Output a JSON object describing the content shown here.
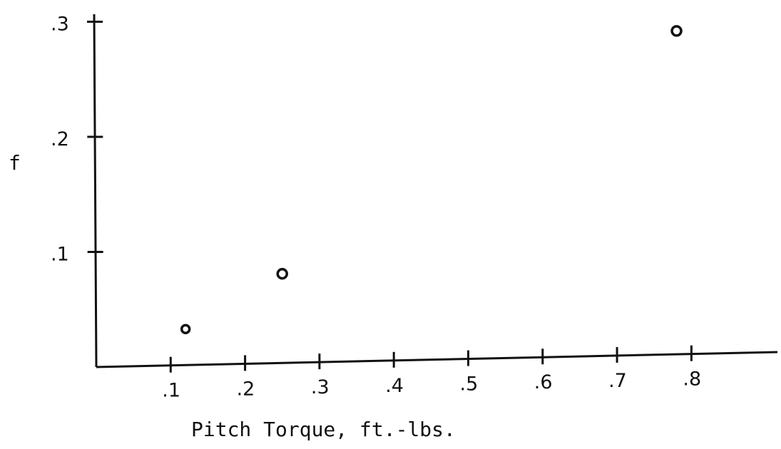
{
  "chart_data": {
    "type": "scatter",
    "title": "",
    "xlabel": "Pitch Torque, ft.-lbs.",
    "ylabel": "f",
    "xlim": [
      0,
      0.9
    ],
    "ylim": [
      0,
      0.3
    ],
    "xticks": [
      0.1,
      0.2,
      0.3,
      0.4,
      0.5,
      0.6,
      0.7,
      0.8
    ],
    "xtick_labels": [
      ".1",
      ".2",
      ".3",
      ".4",
      ".5",
      ".6",
      ".7",
      ".8"
    ],
    "yticks": [
      0.1,
      0.2,
      0.3
    ],
    "ytick_labels": [
      ".1",
      ".2",
      ".3"
    ],
    "grid": false,
    "points": [
      {
        "x": 0.12,
        "y": 0.033
      },
      {
        "x": 0.25,
        "y": 0.081
      },
      {
        "x": 0.78,
        "y": 0.292
      }
    ]
  }
}
